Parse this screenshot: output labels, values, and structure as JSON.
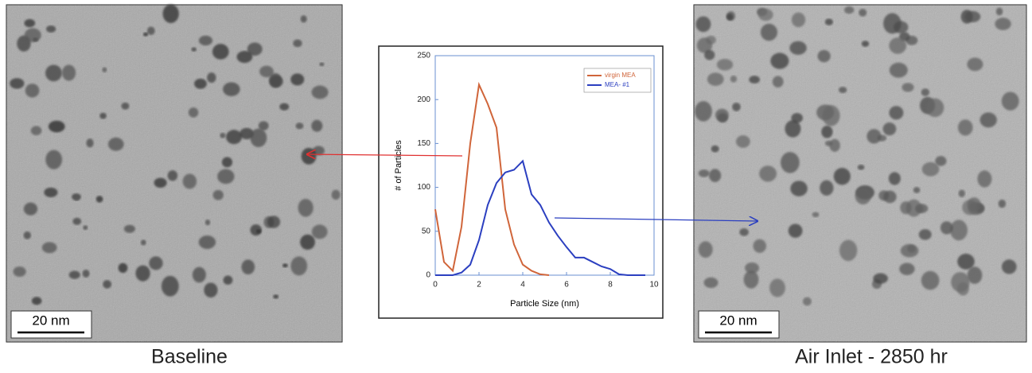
{
  "panels": [
    {
      "caption": "Baseline",
      "scale_bar": "20 nm"
    },
    {
      "caption": "Air Inlet - 2850 hr",
      "scale_bar": "20 nm"
    }
  ],
  "chart_data": {
    "type": "line",
    "x": [
      0,
      0.4,
      0.8,
      1.2,
      1.6,
      2.0,
      2.4,
      2.8,
      3.2,
      3.6,
      4.0,
      4.4,
      4.8,
      5.2,
      5.6,
      6.0,
      6.4,
      6.8,
      7.2,
      7.6,
      8.0,
      8.4,
      8.8,
      9.2,
      9.6,
      10.0
    ],
    "series": [
      {
        "name": "virgin MEA",
        "color": "#d0653a",
        "values": [
          75,
          15,
          5,
          55,
          150,
          217,
          195,
          168,
          75,
          35,
          12,
          5,
          1,
          0,
          null,
          null,
          null,
          null,
          null,
          null,
          null,
          null,
          null,
          null,
          null,
          null
        ]
      },
      {
        "name": "MEA- #1",
        "color": "#2b3fc0",
        "values": [
          0,
          0,
          0,
          3,
          12,
          40,
          80,
          105,
          117,
          120,
          130,
          92,
          80,
          60,
          45,
          32,
          20,
          20,
          15,
          10,
          7,
          1,
          0,
          0,
          0,
          null
        ]
      }
    ],
    "xlabel": "Particle Size (nm)",
    "ylabel": "# of Particles",
    "xlim": [
      0,
      10
    ],
    "xticks": [
      0,
      2,
      4,
      6,
      8,
      10
    ],
    "ylim": [
      0,
      250
    ],
    "yticks": [
      0,
      50,
      100,
      150,
      200,
      250
    ],
    "legend": "top-right"
  }
}
